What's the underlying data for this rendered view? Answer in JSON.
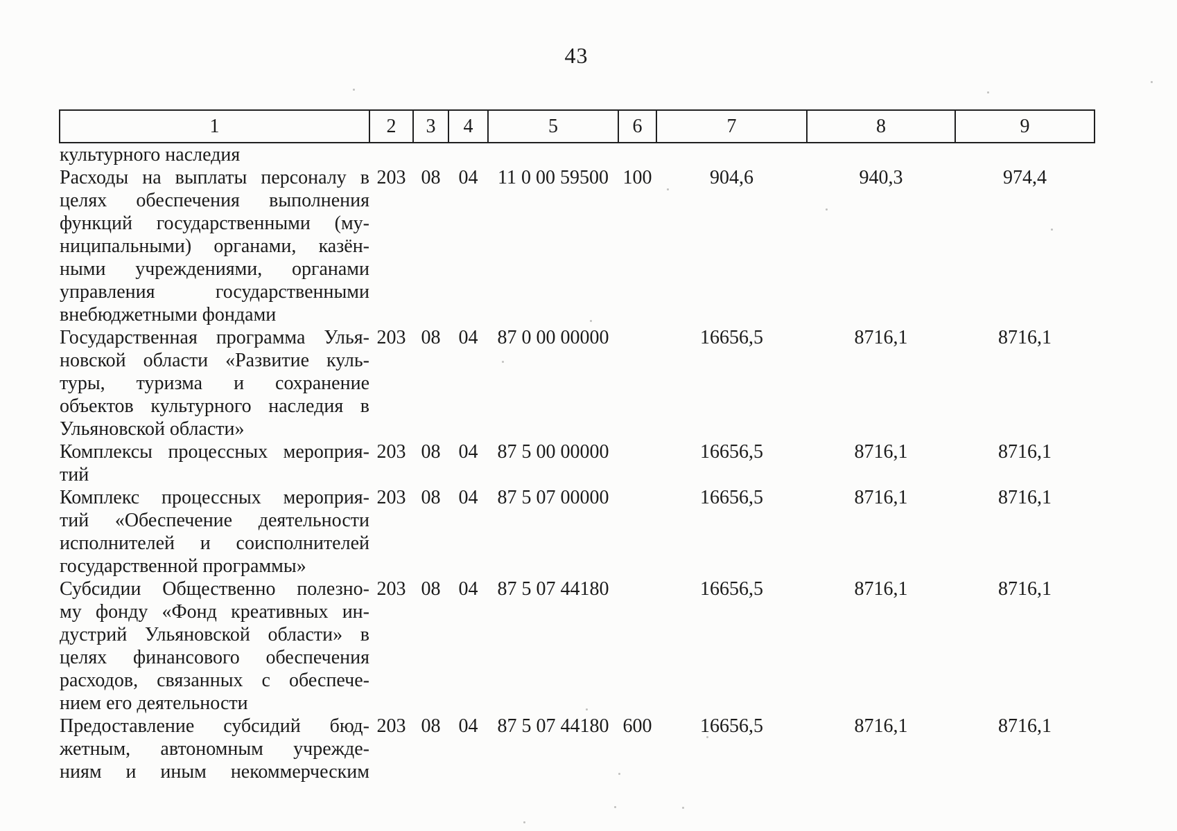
{
  "page": {
    "number": "43"
  },
  "colors": {
    "ink": "#1b1b1b",
    "paper": "#fcfcfb",
    "table_border": "#202020"
  },
  "table": {
    "column_headers": [
      "1",
      "2",
      "3",
      "4",
      "5",
      "6",
      "7",
      "8",
      "9"
    ],
    "rows": [
      {
        "title_lines": [
          "культурного наследия"
        ],
        "justify_last_line": false,
        "cells": [
          "",
          "",
          "",
          "",
          "",
          "",
          "",
          ""
        ]
      },
      {
        "title_lines": [
          "Расходы на выплаты персоналу в",
          "целях обеспечения выполнения",
          "функций государственными (му-",
          "ниципальными) органами, казён-",
          "ными учреждениями, органами",
          "управления государственными",
          "внебюджетными фондами"
        ],
        "justify_last_line": false,
        "cells": [
          "203",
          "08",
          "04",
          "11 0 00 59500",
          "100",
          "904,6",
          "940,3",
          "974,4"
        ]
      },
      {
        "title_lines": [
          "Государственная программа Улья-",
          "новской области «Развитие куль-",
          "туры, туризма и сохранение",
          "объектов культурного наследия в",
          "Ульяновской области»"
        ],
        "justify_last_line": false,
        "cells": [
          "203",
          "08",
          "04",
          "87 0 00 00000",
          "",
          "16656,5",
          "8716,1",
          "8716,1"
        ]
      },
      {
        "title_lines": [
          "Комплексы процессных мероприя-",
          "тий"
        ],
        "justify_last_line": false,
        "cells": [
          "203",
          "08",
          "04",
          "87 5 00 00000",
          "",
          "16656,5",
          "8716,1",
          "8716,1"
        ]
      },
      {
        "title_lines": [
          "Комплекс процессных мероприя-",
          "тий «Обеспечение деятельности",
          "исполнителей и соисполнителей",
          "государственной программы»"
        ],
        "justify_last_line": false,
        "cells": [
          "203",
          "08",
          "04",
          "87 5 07 00000",
          "",
          "16656,5",
          "8716,1",
          "8716,1"
        ]
      },
      {
        "title_lines": [
          "Субсидии Общественно полезно-",
          "му фонду «Фонд креативных ин-",
          "дустрий Ульяновской области» в",
          "целях финансового обеспечения",
          "расходов, связанных с обеспече-",
          "нием его деятельности"
        ],
        "justify_last_line": false,
        "cells": [
          "203",
          "08",
          "04",
          "87 5 07 44180",
          "",
          "16656,5",
          "8716,1",
          "8716,1"
        ]
      },
      {
        "title_lines": [
          "Предоставление субсидий бюд-",
          "жетным, автономным учрежде-",
          "ниям и иным некоммерческим"
        ],
        "justify_last_line": true,
        "cells": [
          "203",
          "08",
          "04",
          "87 5 07 44180",
          "600",
          "16656,5",
          "8716,1",
          "8716,1"
        ]
      }
    ]
  }
}
